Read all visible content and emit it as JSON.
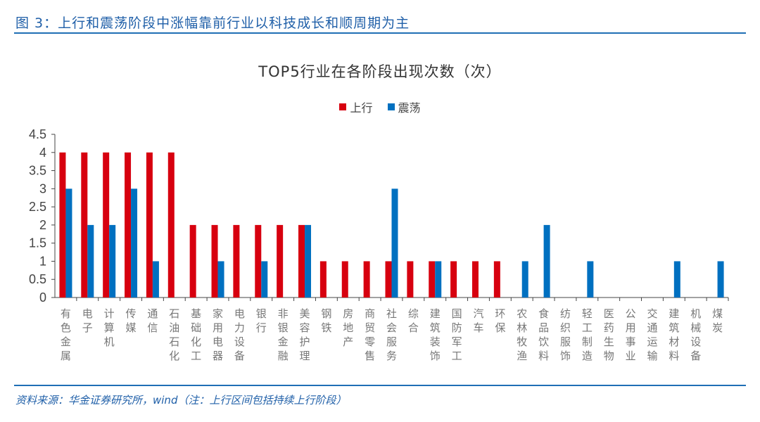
{
  "figure_title": "图 3：上行和震荡阶段中涨幅靠前行业以科技成长和顺周期为主",
  "source": "资料来源：华金证券研究所，wind（注：上行区间包括持续上行阶段）",
  "chart_data": {
    "type": "bar",
    "title": "TOP5行业在各阶段出现次数（次）",
    "legend_position": "top",
    "grid": false,
    "ylim": [
      0,
      4.5
    ],
    "yticks": [
      "0",
      "0.5",
      "1",
      "1.5",
      "2",
      "2.5",
      "3",
      "3.5",
      "4",
      "4.5"
    ],
    "categories": [
      "有色金属",
      "电子",
      "计算机",
      "传媒",
      "通信",
      "石油石化",
      "基础化工",
      "家用电器",
      "电力设备",
      "银行",
      "非银金融",
      "美容护理",
      "钢铁",
      "房地产",
      "商贸零售",
      "社会服务",
      "综合",
      "建筑装饰",
      "国防军工",
      "汽车",
      "环保",
      "农林牧渔",
      "食品饮料",
      "纺织服饰",
      "轻工制造",
      "医药生物",
      "公用事业",
      "交通运输",
      "建筑材料",
      "机械设备",
      "煤炭"
    ],
    "series": [
      {
        "name": "上行",
        "color": "#d7000f",
        "values": [
          4,
          4,
          4,
          4,
          4,
          4,
          2,
          2,
          2,
          2,
          2,
          2,
          1,
          1,
          1,
          1,
          1,
          1,
          1,
          1,
          1,
          0,
          0,
          0,
          0,
          0,
          0,
          0,
          0,
          0,
          0
        ]
      },
      {
        "name": "震荡",
        "color": "#0070c0",
        "values": [
          3,
          2,
          2,
          3,
          1,
          0,
          0,
          1,
          0,
          1,
          0,
          2,
          0,
          0,
          0,
          3,
          0,
          1,
          0,
          0,
          0,
          1,
          2,
          0,
          1,
          0,
          0,
          0,
          1,
          0,
          1
        ]
      }
    ]
  }
}
